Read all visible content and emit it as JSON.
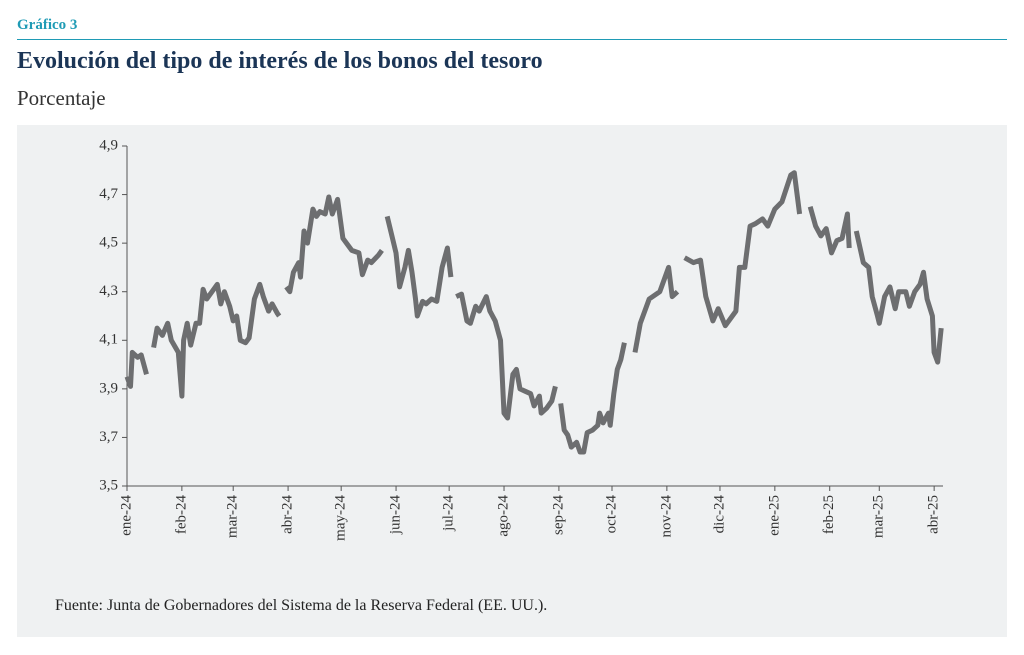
{
  "chart_data": {
    "type": "line",
    "kicker": "Gráfico 3",
    "title": "Evolución del tipo de interés de los bonos del tesoro",
    "subtitle": "Porcentaje",
    "source": "Fuente: Junta de Gobernadores del Sistema de la Reserva Federal (EE. UU.).",
    "color": "#6d6e70",
    "xlim": [
      0,
      461
    ],
    "xticks": [
      {
        "value": 0,
        "label": "ene-24"
      },
      {
        "value": 31,
        "label": "feb-24"
      },
      {
        "value": 60,
        "label": "mar-24"
      },
      {
        "value": 91,
        "label": "abr-24"
      },
      {
        "value": 121,
        "label": "may-24"
      },
      {
        "value": 152,
        "label": "jun-24"
      },
      {
        "value": 182,
        "label": "jul-24"
      },
      {
        "value": 213,
        "label": "ago-24"
      },
      {
        "value": 244,
        "label": "sep-24"
      },
      {
        "value": 274,
        "label": "oct-24"
      },
      {
        "value": 305,
        "label": "nov-24"
      },
      {
        "value": 335,
        "label": "dic-24"
      },
      {
        "value": 366,
        "label": "ene-25"
      },
      {
        "value": 397,
        "label": "feb-25"
      },
      {
        "value": 425,
        "label": "mar-25"
      },
      {
        "value": 456,
        "label": "abr-25"
      }
    ],
    "ylim": [
      3.5,
      4.9
    ],
    "yticks": [
      {
        "value": 3.5,
        "label": "3,5"
      },
      {
        "value": 3.7,
        "label": "3,7"
      },
      {
        "value": 3.9,
        "label": "3,9"
      },
      {
        "value": 4.1,
        "label": "4,1"
      },
      {
        "value": 4.3,
        "label": "4,3"
      },
      {
        "value": 4.5,
        "label": "4,5"
      },
      {
        "value": 4.7,
        "label": "4,7"
      },
      {
        "value": 4.9,
        "label": "4,9"
      }
    ],
    "x": [
      0,
      2,
      3,
      6,
      8,
      11,
      null,
      15,
      17,
      20,
      23,
      25,
      29,
      31,
      32,
      34,
      36,
      39,
      41,
      43,
      45,
      48,
      51,
      53,
      55,
      58,
      60,
      62,
      64,
      67,
      69,
      72,
      75,
      77,
      80,
      82,
      85,
      86,
      null,
      90,
      92,
      94,
      97,
      98,
      100,
      102,
      105,
      107,
      109,
      112,
      114,
      116,
      119,
      122,
      125,
      127,
      131,
      133,
      136,
      138,
      142,
      144,
      null,
      147,
      150,
      152,
      154,
      157,
      159,
      161,
      163,
      164,
      167,
      169,
      172,
      175,
      178,
      181,
      183,
      null,
      186,
      189,
      192,
      194,
      197,
      199,
      203,
      205,
      208,
      211,
      213,
      215,
      218,
      220,
      222,
      225,
      228,
      230,
      233,
      234,
      237,
      240,
      242,
      null,
      245,
      247,
      249,
      251,
      254,
      256,
      258,
      260,
      263,
      266,
      267,
      269,
      272,
      273,
      275,
      277,
      279,
      281,
      null,
      287,
      290,
      295,
      301,
      306,
      308,
      311,
      null,
      315,
      320,
      324,
      327,
      331,
      334,
      338,
      344,
      346,
      349,
      352,
      355,
      359,
      362,
      366,
      370,
      375,
      377,
      380,
      null,
      386,
      389,
      392,
      395,
      398,
      401,
      404,
      407,
      408,
      null,
      412,
      416,
      419,
      421,
      424,
      425,
      428,
      431,
      434,
      436,
      440,
      442,
      445,
      448,
      450,
      452,
      455,
      456,
      458,
      460
    ],
    "values": [
      3.95,
      3.91,
      4.05,
      4.03,
      4.04,
      3.96,
      null,
      4.07,
      4.15,
      4.12,
      4.17,
      4.1,
      4.05,
      3.87,
      4.1,
      4.17,
      4.08,
      4.17,
      4.17,
      4.31,
      4.27,
      4.3,
      4.33,
      4.25,
      4.3,
      4.24,
      4.18,
      4.2,
      4.1,
      4.09,
      4.11,
      4.27,
      4.33,
      4.28,
      4.22,
      4.25,
      4.21,
      4.2,
      null,
      4.32,
      4.3,
      4.38,
      4.42,
      4.36,
      4.55,
      4.5,
      4.64,
      4.61,
      4.63,
      4.62,
      4.69,
      4.62,
      4.68,
      4.52,
      4.49,
      4.47,
      4.46,
      4.37,
      4.43,
      4.42,
      4.45,
      4.47,
      null,
      4.61,
      4.52,
      4.46,
      4.32,
      4.4,
      4.47,
      4.38,
      4.27,
      4.2,
      4.26,
      4.25,
      4.27,
      4.26,
      4.4,
      4.48,
      4.36,
      null,
      4.28,
      4.29,
      4.18,
      4.17,
      4.24,
      4.22,
      4.28,
      4.22,
      4.18,
      4.1,
      3.8,
      3.78,
      3.96,
      3.98,
      3.9,
      3.89,
      3.88,
      3.83,
      3.87,
      3.8,
      3.82,
      3.85,
      3.91,
      null,
      3.84,
      3.73,
      3.71,
      3.66,
      3.68,
      3.64,
      3.64,
      3.72,
      3.73,
      3.75,
      3.8,
      3.76,
      3.8,
      3.75,
      3.88,
      3.98,
      4.02,
      4.09,
      null,
      4.05,
      4.17,
      4.27,
      4.3,
      4.4,
      4.28,
      4.3,
      null,
      4.44,
      4.42,
      4.43,
      4.28,
      4.18,
      4.23,
      4.16,
      4.22,
      4.4,
      4.4,
      4.57,
      4.58,
      4.6,
      4.57,
      4.64,
      4.67,
      4.78,
      4.79,
      4.62,
      null,
      4.65,
      4.57,
      4.53,
      4.56,
      4.46,
      4.51,
      4.52,
      4.62,
      4.48,
      null,
      4.55,
      4.42,
      4.4,
      4.28,
      4.2,
      4.17,
      4.28,
      4.32,
      4.23,
      4.3,
      4.3,
      4.24,
      4.3,
      4.33,
      4.38,
      4.27,
      4.2,
      4.05,
      4.01,
      4.15
    ]
  }
}
